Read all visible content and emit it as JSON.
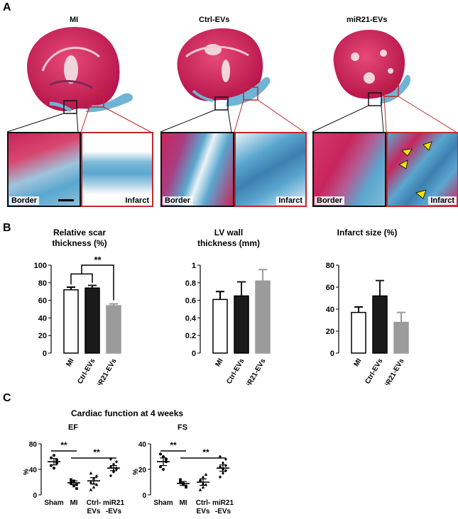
{
  "panels": {
    "a": "A",
    "b": "B",
    "c": "C"
  },
  "histology": {
    "groups": [
      {
        "title": "MI",
        "border": "Border",
        "infarct": "Infarct"
      },
      {
        "title": "Ctrl-EVs",
        "border": "Border",
        "infarct": "Infarct"
      },
      {
        "title": "miR21-EVs",
        "border": "Border",
        "infarct": "Infarct"
      }
    ],
    "colors": {
      "muscle": "#c0225a",
      "fibrosis": "#5aa7cf",
      "border_box": "#111111",
      "infarct_box": "#c0282d"
    }
  },
  "bar_colors": [
    "#ffffff",
    "#1a1a1a",
    "#9b9b9b"
  ],
  "chart_data": [
    {
      "type": "bar",
      "title_lines": [
        "Relative scar",
        "thickness (%)"
      ],
      "categories": [
        "MI",
        "Ctrl-EVs",
        "miR21-EVs"
      ],
      "values": [
        72,
        74,
        54
      ],
      "errors": [
        3,
        3,
        2
      ],
      "ylim": [
        0,
        100
      ],
      "yticks": [
        "0",
        "20",
        "40",
        "60",
        "80",
        "100"
      ],
      "significance": "**"
    },
    {
      "type": "bar",
      "title_lines": [
        "LV wall",
        "thickness (mm)"
      ],
      "categories": [
        "MI",
        "Ctrl-EVs",
        "miR21-EVs"
      ],
      "values": [
        0.61,
        0.65,
        0.82
      ],
      "errors": [
        0.09,
        0.16,
        0.13
      ],
      "ylim": [
        0,
        1
      ],
      "yticks": [
        "0",
        "0.2",
        "0.4",
        "0.6",
        "0.8",
        "1"
      ]
    },
    {
      "type": "bar",
      "title_lines": [
        "Infarct size (%)"
      ],
      "categories": [
        "MI",
        "Ctrl-EVs",
        "miR21-EVs"
      ],
      "values": [
        37,
        52,
        28
      ],
      "errors": [
        5,
        14,
        9
      ],
      "ylim": [
        0,
        80
      ],
      "yticks": [
        "0",
        "20",
        "40",
        "60",
        "80"
      ]
    },
    {
      "type": "scatter",
      "title": "EF",
      "ylabel": "%",
      "categories": [
        "Sham",
        "MI",
        "Ctrl-\nEVs",
        "miR21\n-EVs"
      ],
      "ylim": [
        0,
        80
      ],
      "yticks": [
        "0",
        "40",
        "80"
      ],
      "means": [
        52,
        19,
        22,
        42
      ],
      "sems": [
        5,
        3,
        5,
        4
      ],
      "points": [
        [
          58,
          62,
          55,
          46,
          42,
          50
        ],
        [
          18,
          14,
          10,
          24,
          22,
          16,
          20
        ],
        [
          8,
          12,
          16,
          20,
          26,
          30,
          34,
          18
        ],
        [
          30,
          36,
          40,
          44,
          48,
          52,
          56,
          38,
          42
        ]
      ],
      "significance": [
        "**",
        "**"
      ]
    },
    {
      "type": "scatter",
      "title": "FS",
      "ylabel": "%",
      "categories": [
        "Sham",
        "MI",
        "Ctrl-\nEVs",
        "miR21\n-EVs"
      ],
      "ylim": [
        0,
        40
      ],
      "yticks": [
        "0",
        "20",
        "40"
      ],
      "means": [
        26,
        9,
        10,
        21
      ],
      "sems": [
        3,
        1.5,
        2.5,
        2.5
      ],
      "points": [
        [
          32,
          30,
          26,
          22,
          20,
          28
        ],
        [
          10,
          8,
          6,
          12,
          9,
          7,
          11
        ],
        [
          4,
          6,
          8,
          11,
          14,
          16,
          12,
          9
        ],
        [
          14,
          17,
          19,
          22,
          25,
          28,
          30,
          20,
          23
        ]
      ],
      "significance": [
        "**",
        "**"
      ]
    }
  ],
  "panel_c_title": "Cardiac function at 4 weeks"
}
